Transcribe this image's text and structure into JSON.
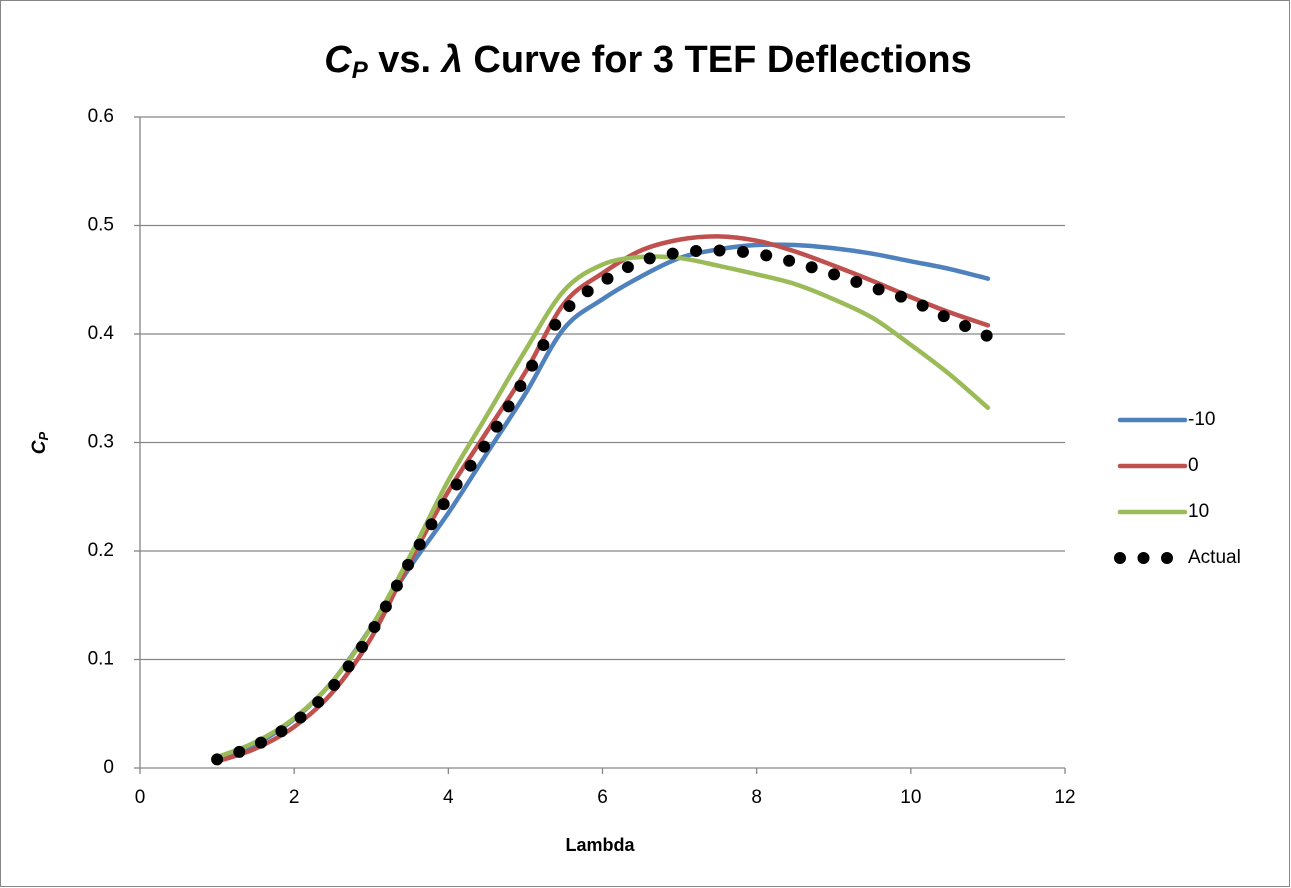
{
  "chart_data": {
    "type": "line",
    "title": [
      "C",
      "P",
      " vs. ",
      "λ",
      " Curve for 3 TEF Deflections"
    ],
    "xlabel": "Lambda",
    "ylabel": [
      "C",
      "P"
    ],
    "x": [
      1,
      1.5,
      2,
      2.5,
      3,
      3.5,
      4,
      4.5,
      5,
      5.5,
      6,
      6.5,
      7,
      7.5,
      8,
      8.5,
      9,
      9.5,
      10,
      10.5,
      11
    ],
    "series": [
      {
        "name": "-10",
        "color": "#4f81bd",
        "line_style": "solid",
        "values": [
          0.008,
          0.022,
          0.045,
          0.08,
          0.13,
          0.185,
          0.235,
          0.29,
          0.345,
          0.405,
          0.432,
          0.453,
          0.47,
          0.478,
          0.482,
          0.482,
          0.479,
          0.474,
          0.467,
          0.46,
          0.451
        ]
      },
      {
        "name": "0",
        "color": "#c0504d",
        "line_style": "solid",
        "values": [
          0.006,
          0.018,
          0.038,
          0.07,
          0.12,
          0.19,
          0.255,
          0.31,
          0.365,
          0.428,
          0.456,
          0.477,
          0.487,
          0.49,
          0.486,
          0.476,
          0.463,
          0.449,
          0.434,
          0.42,
          0.408
        ]
      },
      {
        "name": "10",
        "color": "#9bbb59",
        "line_style": "solid",
        "values": [
          0.01,
          0.024,
          0.046,
          0.08,
          0.13,
          0.195,
          0.265,
          0.325,
          0.385,
          0.44,
          0.464,
          0.471,
          0.47,
          0.463,
          0.455,
          0.446,
          0.432,
          0.415,
          0.39,
          0.363,
          0.332
        ]
      },
      {
        "name": "Actual",
        "color": "#000000",
        "line_style": "dotted",
        "values": [
          0.008,
          0.021,
          0.042,
          0.075,
          0.125,
          0.19,
          0.25,
          0.3,
          0.36,
          0.42,
          0.448,
          0.467,
          0.475,
          0.477,
          0.474,
          0.466,
          0.455,
          0.443,
          0.431,
          0.414,
          0.398
        ]
      }
    ],
    "xlim": [
      0,
      12
    ],
    "xticks": [
      0,
      2,
      4,
      6,
      8,
      10,
      12
    ],
    "ylim": [
      0,
      0.6
    ],
    "yticks": [
      0,
      0.1,
      0.2,
      0.3,
      0.4,
      0.5,
      0.6
    ],
    "grid": true,
    "legend": "right"
  }
}
